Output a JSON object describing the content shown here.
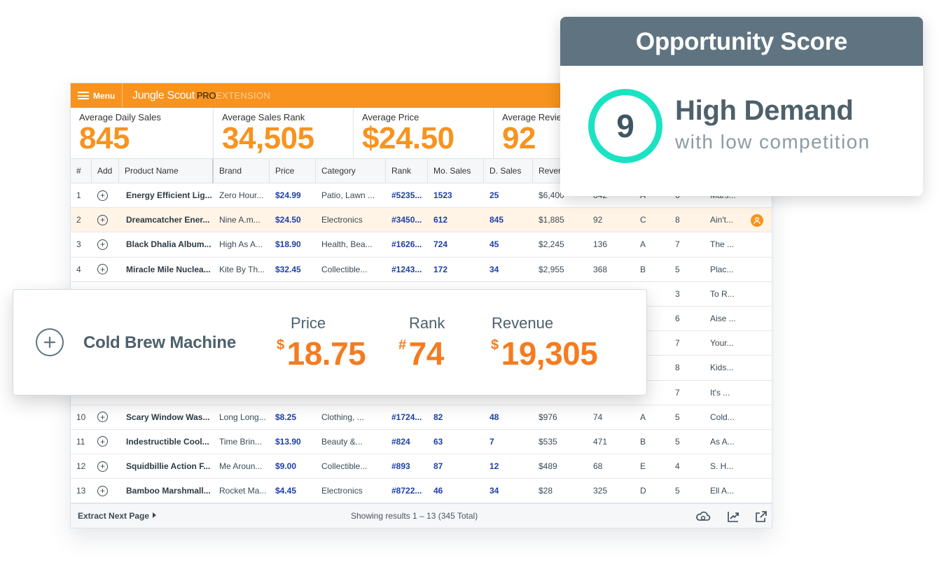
{
  "app": {
    "menu_label": "Menu",
    "brand_name": "Jungle Scout",
    "brand_pro": "PRO",
    "brand_ext": "EXTENSION"
  },
  "stats": [
    {
      "label": "Average Daily Sales",
      "value": "845"
    },
    {
      "label": "Average Sales Rank",
      "value": "34,505"
    },
    {
      "label": "Average Price",
      "value": "$24.50"
    },
    {
      "label": "Average Revie",
      "value": "92"
    }
  ],
  "table": {
    "headers": [
      "#",
      "Add",
      "Product Name",
      "Brand",
      "Price",
      "Category",
      "Rank",
      "Mo. Sales",
      "D. Sales",
      "Rever"
    ],
    "rows": [
      {
        "num": "1",
        "name": "Energy Efficient Lig...",
        "brand": "Zero Hour...",
        "price": "$24.99",
        "category": "Patio, Lawn ...",
        "rank": "#5235...",
        "mo_sales": "1523",
        "d_sales": "25",
        "revenue": "$6,400",
        "reviews": "842",
        "grade": "A",
        "sellers": "6",
        "desc": "Mars..."
      },
      {
        "num": "2",
        "name": "Dreamcatcher Ener...",
        "brand": "Nine A.m...",
        "price": "$24.50",
        "category": "Electronics",
        "rank": "#3450...",
        "mo_sales": "612",
        "d_sales": "845",
        "revenue": "$1,885",
        "reviews": "92",
        "grade": "C",
        "sellers": "8",
        "desc": "Ain't..."
      },
      {
        "num": "3",
        "name": "Black Dhalia Album...",
        "brand": "High As A...",
        "price": "$18.90",
        "category": "Health, Bea...",
        "rank": "#1626...",
        "mo_sales": "724",
        "d_sales": "45",
        "revenue": "$2,245",
        "reviews": "136",
        "grade": "A",
        "sellers": "7",
        "desc": "The ..."
      },
      {
        "num": "4",
        "name": "Miracle Mile Nuclea...",
        "brand": "Kite By Th...",
        "price": "$32.45",
        "category": "Collectible...",
        "rank": "#1243...",
        "mo_sales": "172",
        "d_sales": "34",
        "revenue": "$2,955",
        "reviews": "368",
        "grade": "B",
        "sellers": "5",
        "desc": "Plac..."
      },
      {
        "num": "",
        "name": "",
        "brand": "",
        "price": "",
        "category": "",
        "rank": "",
        "mo_sales": "",
        "d_sales": "",
        "revenue": "",
        "reviews": "",
        "grade": "",
        "sellers": "3",
        "desc": "To R..."
      },
      {
        "num": "",
        "name": "",
        "brand": "",
        "price": "",
        "category": "",
        "rank": "",
        "mo_sales": "",
        "d_sales": "",
        "revenue": "",
        "reviews": "",
        "grade": "",
        "sellers": "6",
        "desc": "Aise ..."
      },
      {
        "num": "",
        "name": "",
        "brand": "",
        "price": "",
        "category": "",
        "rank": "",
        "mo_sales": "",
        "d_sales": "",
        "revenue": "",
        "reviews": "",
        "grade": "",
        "sellers": "7",
        "desc": "Your..."
      },
      {
        "num": "",
        "name": "",
        "brand": "",
        "price": "",
        "category": "",
        "rank": "",
        "mo_sales": "",
        "d_sales": "",
        "revenue": "",
        "reviews": "",
        "grade": "",
        "sellers": "8",
        "desc": "Kids..."
      },
      {
        "num": "",
        "name": "",
        "brand": "",
        "price": "",
        "category": "",
        "rank": "",
        "mo_sales": "",
        "d_sales": "",
        "revenue": "",
        "reviews": "",
        "grade": "",
        "sellers": "7",
        "desc": "It's ..."
      },
      {
        "num": "10",
        "name": "Scary Window Was...",
        "brand": "Long Long...",
        "price": "$8.25",
        "category": "Clothing, ...",
        "rank": "#1724...",
        "mo_sales": "82",
        "d_sales": "48",
        "revenue": "$976",
        "reviews": "74",
        "grade": "A",
        "sellers": "5",
        "desc": "Cold..."
      },
      {
        "num": "11",
        "name": "Indestructible Cool...",
        "brand": "Time Brin...",
        "price": "$13.90",
        "category": "Beauty &...",
        "rank": "#824",
        "mo_sales": "63",
        "d_sales": "7",
        "revenue": "$535",
        "reviews": "471",
        "grade": "B",
        "sellers": "5",
        "desc": "As A..."
      },
      {
        "num": "12",
        "name": "Squidbillie Action F...",
        "brand": "Me Aroun...",
        "price": "$9.00",
        "category": "Collectible...",
        "rank": "#893",
        "mo_sales": "87",
        "d_sales": "12",
        "revenue": "$489",
        "reviews": "68",
        "grade": "E",
        "sellers": "4",
        "desc": "S. H..."
      },
      {
        "num": "13",
        "name": "Bamboo Marshmall...",
        "brand": "Rocket Ma...",
        "price": "$4.45",
        "category": "Electronics",
        "rank": "#8722...",
        "mo_sales": "46",
        "d_sales": "34",
        "revenue": "$28",
        "reviews": "325",
        "grade": "D",
        "sellers": "5",
        "desc": "Ell A..."
      }
    ]
  },
  "footer": {
    "extract_label": "Extract Next Page",
    "results_text": "Showing results 1 – 13 (345 Total)"
  },
  "opportunity": {
    "header": "Opportunity Score",
    "score": "9",
    "title": "High Demand",
    "subtitle": "with low competition",
    "ring_color": "#19e3c3"
  },
  "product_card": {
    "name": "Cold Brew Machine",
    "price_label": "Price",
    "price_symbol": "$",
    "price_value": "18.75",
    "rank_label": "Rank",
    "rank_symbol": "#",
    "rank_value": "74",
    "revenue_label": "Revenue",
    "revenue_symbol": "$",
    "revenue_value": "19,305"
  },
  "colors": {
    "accent": "#f7931e",
    "link_blue": "#1e3fa8",
    "header_slate": "#5f7480",
    "value_orange": "#f47c20"
  }
}
